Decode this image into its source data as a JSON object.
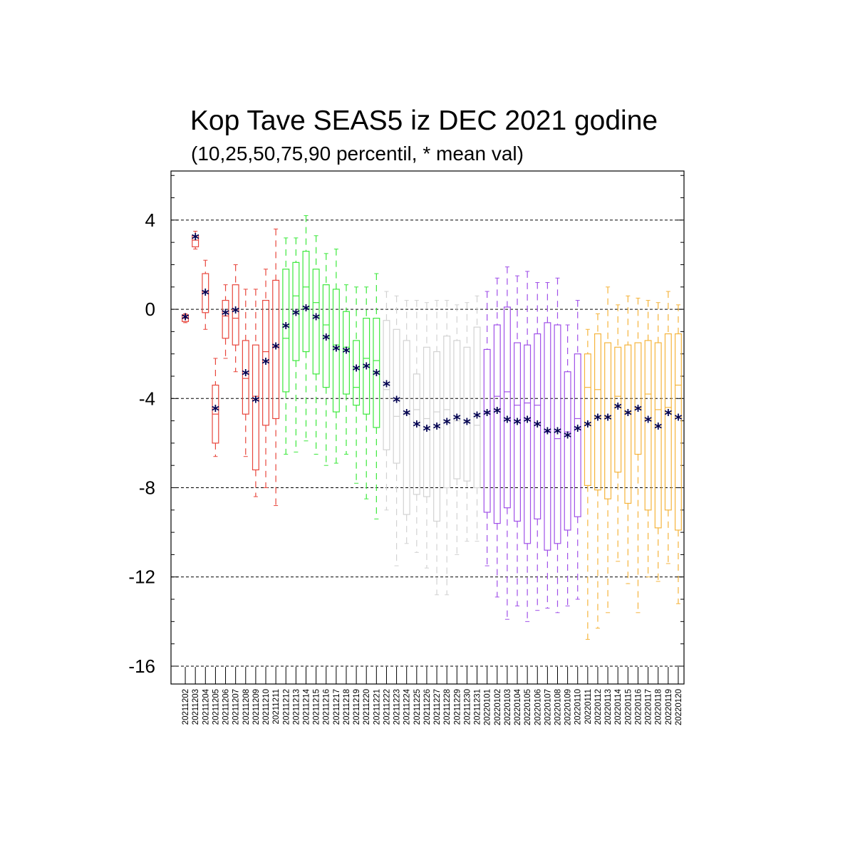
{
  "title": "Kop Tave SEAS5 iz DEC 2021 godine",
  "subtitle": "(10,25,50,75,90 percentil, * mean val)",
  "colors": {
    "group_1": "#e8463c",
    "group_2": "#3ce83c",
    "group_3": "#d2d2d2",
    "group_4": "#a050e8",
    "group_5": "#f5b43c",
    "mean_marker": "#000050",
    "grid": "#000000"
  },
  "chart_data": {
    "type": "boxplot",
    "title": "Kop Tave SEAS5 iz DEC 2021 godine",
    "subtitle": "(10,25,50,75,90 percentil, * mean val)",
    "xlabel": "",
    "ylabel": "",
    "ylim": [
      -16.8,
      6.2
    ],
    "yticks": [
      4,
      0,
      -4,
      -8,
      -12,
      -16
    ],
    "grid": "dashed horizontal at major y ticks",
    "box_fields": [
      "p10",
      "p25",
      "p50",
      "p75",
      "p90",
      "mean"
    ],
    "categories": [
      "20211202",
      "20211203",
      "20211204",
      "20211205",
      "20211206",
      "20211207",
      "20211208",
      "20211209",
      "20211210",
      "20211211",
      "20211212",
      "20211213",
      "20211214",
      "20211215",
      "20211216",
      "20211217",
      "20211218",
      "20211219",
      "20211220",
      "20211221",
      "20211222",
      "20211223",
      "20211224",
      "20211225",
      "20211226",
      "20211227",
      "20211228",
      "20211229",
      "20211230",
      "20211231",
      "20220101",
      "20220102",
      "20220103",
      "20220104",
      "20220105",
      "20220106",
      "20220107",
      "20220108",
      "20220109",
      "20220110",
      "20220111",
      "20220112",
      "20220113",
      "20220114",
      "20220115",
      "20220116",
      "20220117",
      "20220118",
      "20220119",
      "20220120"
    ],
    "groups": [
      1,
      1,
      1,
      1,
      1,
      1,
      1,
      1,
      1,
      1,
      2,
      2,
      2,
      2,
      2,
      2,
      2,
      2,
      2,
      2,
      3,
      3,
      3,
      3,
      3,
      3,
      3,
      3,
      3,
      3,
      4,
      4,
      4,
      4,
      4,
      4,
      4,
      4,
      4,
      4,
      5,
      5,
      5,
      5,
      5,
      5,
      5,
      5,
      5,
      5
    ],
    "boxes": [
      [
        -0.6,
        -0.55,
        -0.4,
        -0.25,
        -0.2,
        -0.4
      ],
      [
        2.7,
        2.8,
        3.1,
        3.3,
        3.5,
        3.2
      ],
      [
        -0.9,
        -0.15,
        0.8,
        1.6,
        2.2,
        0.7
      ],
      [
        -6.6,
        -6.0,
        -4.7,
        -3.4,
        -2.2,
        -4.5
      ],
      [
        -2.2,
        -1.3,
        -0.3,
        0.4,
        1.1,
        -0.2
      ],
      [
        -2.8,
        -1.6,
        -0.4,
        1.1,
        2.0,
        -0.1
      ],
      [
        -6.6,
        -4.7,
        -3.1,
        -1.4,
        0.9,
        -2.9
      ],
      [
        -8.4,
        -7.2,
        -3.9,
        -1.6,
        0.9,
        -4.1
      ],
      [
        -8.0,
        -5.2,
        -1.9,
        0.4,
        1.8,
        -2.4
      ],
      [
        -8.8,
        -4.9,
        -1.7,
        1.3,
        3.6,
        -1.7
      ],
      [
        -6.5,
        -3.7,
        -1.3,
        1.8,
        3.2,
        -0.8
      ],
      [
        -6.4,
        -2.3,
        0.6,
        2.1,
        3.2,
        -0.2
      ],
      [
        -5.9,
        -1.9,
        1.0,
        2.6,
        4.2,
        0.0
      ],
      [
        -6.5,
        -2.9,
        0.3,
        1.8,
        3.3,
        -0.4
      ],
      [
        -7.0,
        -3.5,
        -0.7,
        1.1,
        2.5,
        -1.3
      ],
      [
        -6.9,
        -4.6,
        -1.6,
        0.9,
        2.7,
        -1.8
      ],
      [
        -6.5,
        -3.8,
        -1.7,
        -0.1,
        1.1,
        -1.9
      ],
      [
        -7.8,
        -4.3,
        -3.5,
        -1.4,
        1.0,
        -2.7
      ],
      [
        -8.5,
        -4.7,
        -2.2,
        -0.4,
        1.0,
        -2.6
      ],
      [
        -9.4,
        -5.3,
        -2.3,
        -0.4,
        1.6,
        -2.9
      ],
      [
        -9.0,
        -6.3,
        -3.6,
        -0.5,
        0.8,
        -3.4
      ],
      [
        -11.5,
        -6.9,
        -4.8,
        -0.9,
        0.6,
        -4.1
      ],
      [
        -10.5,
        -9.2,
        -4.7,
        -1.4,
        0.4,
        -4.7
      ],
      [
        -10.9,
        -8.3,
        -4.5,
        -2.9,
        0.4,
        -5.2
      ],
      [
        -11.6,
        -8.4,
        -4.9,
        -1.7,
        0.3,
        -5.4
      ],
      [
        -12.8,
        -9.5,
        -4.6,
        -1.9,
        0.4,
        -5.3
      ],
      [
        -12.8,
        -8.0,
        -4.5,
        -1.2,
        0.4,
        -5.1
      ],
      [
        -11.0,
        -7.6,
        -5.0,
        -1.4,
        0.2,
        -4.9
      ],
      [
        -10.4,
        -7.7,
        -5.0,
        -1.7,
        0.3,
        -5.1
      ],
      [
        -10.4,
        -8.0,
        -5.2,
        -0.8,
        0.6,
        -4.8
      ],
      [
        -11.5,
        -9.1,
        -4.6,
        -1.8,
        0.8,
        -4.7
      ],
      [
        -12.9,
        -9.6,
        -3.9,
        -0.7,
        1.4,
        -4.6
      ],
      [
        -13.9,
        -8.9,
        -3.7,
        0.1,
        1.9,
        -5.0
      ],
      [
        -13.3,
        -9.5,
        -4.3,
        -1.5,
        1.5,
        -5.1
      ],
      [
        -14.0,
        -10.5,
        -4.2,
        -1.6,
        1.7,
        -5.0
      ],
      [
        -13.5,
        -9.4,
        -4.3,
        -1.1,
        1.2,
        -5.2
      ],
      [
        -13.4,
        -10.8,
        -5.5,
        -0.6,
        1.2,
        -5.5
      ],
      [
        -13.6,
        -10.5,
        -5.8,
        -0.7,
        1.4,
        -5.5
      ],
      [
        -13.3,
        -9.9,
        -5.5,
        -2.8,
        -0.7,
        -5.7
      ],
      [
        -13.0,
        -9.3,
        -4.9,
        -2.0,
        0.4,
        -5.4
      ],
      [
        -14.8,
        -7.9,
        -3.5,
        -2.0,
        -0.9,
        -5.2
      ],
      [
        -14.3,
        -8.1,
        -3.6,
        -1.1,
        -0.2,
        -4.9
      ],
      [
        -13.6,
        -8.5,
        -4.8,
        -1.5,
        1.0,
        -4.9
      ],
      [
        -11.3,
        -7.3,
        -3.9,
        -1.7,
        0.2,
        -4.4
      ],
      [
        -12.3,
        -8.7,
        -4.6,
        -1.6,
        0.6,
        -4.7
      ],
      [
        -13.6,
        -6.5,
        -4.4,
        -1.5,
        0.5,
        -4.5
      ],
      [
        -12.0,
        -9.0,
        -3.8,
        -1.4,
        0.4,
        -5.0
      ],
      [
        -12.2,
        -9.8,
        -4.5,
        -1.5,
        0.3,
        -5.3
      ],
      [
        -11.4,
        -9.0,
        -4.4,
        -1.1,
        0.8,
        -4.7
      ],
      [
        -13.2,
        -9.9,
        -3.4,
        -1.1,
        0.2,
        -4.9
      ]
    ]
  }
}
